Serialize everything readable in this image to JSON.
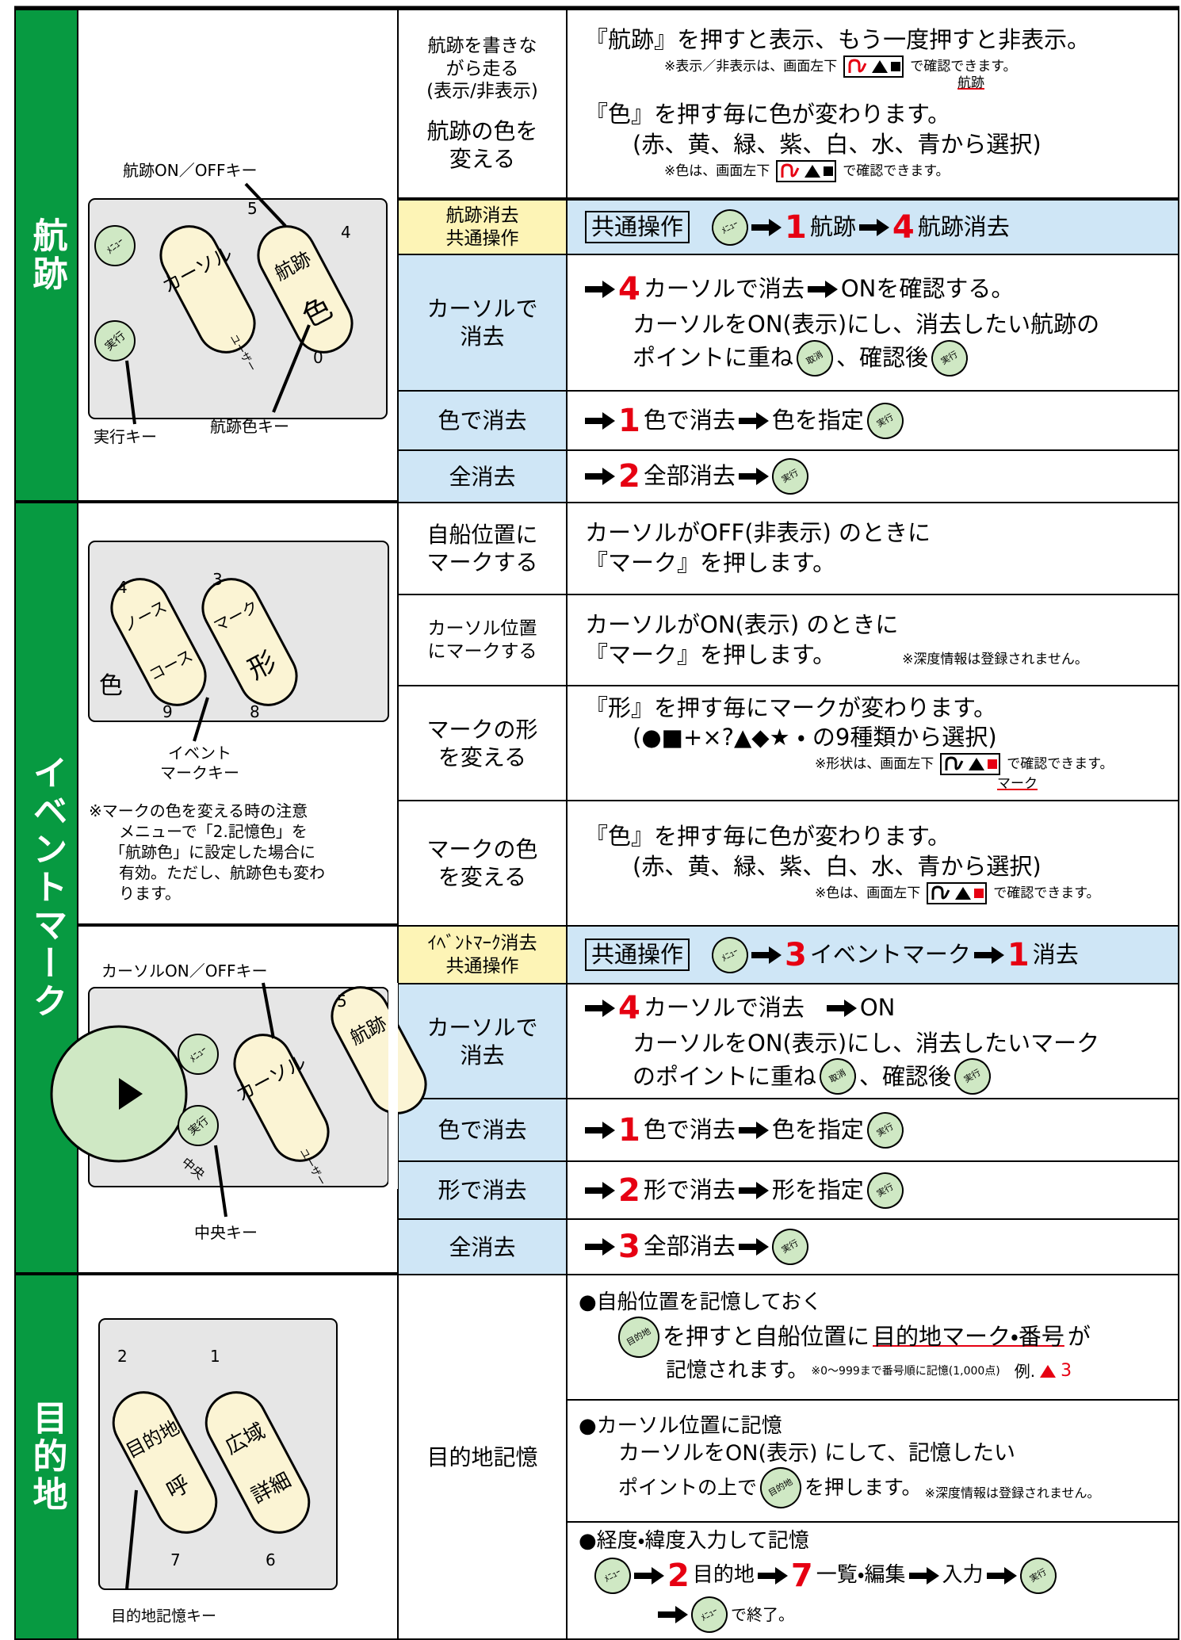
{
  "buttons": {
    "menu": "ﾒﾆｭｰ",
    "exec": "実行",
    "cancel": "取消",
    "dest": "目的地"
  },
  "track": {
    "title": "航跡",
    "figure": {
      "onoff_label": "航跡ON／OFFキー",
      "exec_label": "実行キー",
      "color_label": "航跡色キー",
      "cursor_key": "カーソル",
      "track_key": "航跡",
      "color_key": "色",
      "user": "ユーザー",
      "n5": "5",
      "n4": "4",
      "n0": "0"
    },
    "rows": [
      {
        "label": [
          "航跡を書きな",
          "がら走る",
          "(表示/非表示)"
        ],
        "desc": [
          "『航跡』を押すと表示、もう一度押すと非表示。",
          "※表示／非表示は、画面左下",
          "で確認できます。",
          "航跡"
        ]
      },
      {
        "label": [
          "航跡の色を",
          "変える"
        ],
        "desc": [
          "『色』を押す毎に色が変わります。",
          "(赤、黄、緑、紫、白、水、青から選択)",
          "※色は、画面左下",
          "で確認できます。"
        ]
      },
      {
        "label": [
          "航跡消去",
          "共通操作"
        ],
        "desc": [
          "共通操作",
          "1",
          "航跡",
          "4",
          "航跡消去"
        ]
      },
      {
        "label": [
          "カーソルで",
          "消去"
        ],
        "desc": [
          "4",
          "カーソルで消去",
          "ONを確認する。",
          "カーソルをON(表示)にし、消去したい航跡の",
          "ポイントに重ね",
          "、確認後"
        ]
      },
      {
        "label": [
          "色で消去"
        ],
        "desc": [
          "1",
          "色で消去",
          "色を指定"
        ]
      },
      {
        "label": [
          "全消去"
        ],
        "desc": [
          "2",
          "全部消去"
        ]
      }
    ]
  },
  "event": {
    "title": "イベントマーク",
    "figure": {
      "n4": "4",
      "n3": "3",
      "n9": "9",
      "n8": "8",
      "nose": "ノース",
      "course": "コース",
      "mark": "マーク",
      "shape": "形",
      "color": "色",
      "key_label": [
        "イベント",
        "マークキー"
      ],
      "note": [
        "※マークの色を変える時の注意",
        "メニューで「2.記憶色」を",
        "「航跡色」に設定した場合に",
        "有効。ただし、航跡色も変わ",
        "ります。"
      ]
    },
    "figure2": {
      "cursor_label": "カーソルON／OFFキー",
      "center_label": "中央キー",
      "cursor": "カーソル",
      "track": "航跡",
      "user": "ユーザー",
      "center": "中央",
      "n5": "5"
    },
    "rows": [
      {
        "label": [
          "自船位置に",
          "マークする"
        ],
        "desc": [
          "カーソルがOFF(非表示) のときに",
          "『マーク』を押します。"
        ]
      },
      {
        "label": [
          "カーソル位置",
          "にマークする"
        ],
        "desc": [
          "カーソルがON(表示) のときに",
          "『マーク』を押します。",
          "※深度情報は登録されません。"
        ]
      },
      {
        "label": [
          "マークの形",
          "を変える"
        ],
        "desc": [
          "『形』を押す毎にマークが変わります。",
          "(●■+×?▲◆★ ・ の9種類から選択)",
          "※形状は、画面左下",
          "で確認できます。",
          "マーク"
        ]
      },
      {
        "label": [
          "マークの色",
          "を変える"
        ],
        "desc": [
          "『色』を押す毎に色が変わります。",
          "(赤、黄、緑、紫、白、水、青から選択)",
          "※色は、画面左下",
          "で確認できます。"
        ]
      },
      {
        "label": [
          "ｲﾍﾞﾝﾄﾏｰｸ消去",
          "共通操作"
        ],
        "desc": [
          "共通操作",
          "3",
          "イベントマーク",
          "1",
          "消去"
        ]
      },
      {
        "label": [
          "カーソルで",
          "消去"
        ],
        "desc": [
          "4",
          "カーソルで消去",
          "ON",
          "カーソルをON(表示)にし、消去したいマーク",
          "のポイントに重ね",
          "、確認後"
        ]
      },
      {
        "label": [
          "色で消去"
        ],
        "desc": [
          "1",
          "色で消去",
          "色を指定"
        ]
      },
      {
        "label": [
          "形で消去"
        ],
        "desc": [
          "2",
          "形で消去",
          "形を指定"
        ]
      },
      {
        "label": [
          "全消去"
        ],
        "desc": [
          "3",
          "全部消去"
        ]
      }
    ]
  },
  "destination": {
    "title": "目的地",
    "figure": {
      "n2": "2",
      "n1": "1",
      "n7": "7",
      "n6": "6",
      "key1": "目的地",
      "key1b": "呼",
      "key2": "広域",
      "key2b": "詳細",
      "key_label": "目的地記憶キー"
    },
    "label": "目的地記憶",
    "blocks": [
      [
        "●自船位置を記憶しておく",
        "を押すと自船位置に",
        "目的地マーク・番号",
        "が",
        "記憶されます。",
        "※0～999まで番号順に記憶(1,000点)",
        "例.",
        "3"
      ],
      [
        "●カーソル位置に記憶",
        "カーソルをON(表示) にして、記憶したい",
        "ポイントの上で",
        "を押します。",
        "※深度情報は登録されません。"
      ],
      [
        "●経度・緯度入力して記憶",
        "2",
        "目的地",
        "7",
        "一覧・編集",
        "入力",
        "で終了。"
      ]
    ]
  }
}
